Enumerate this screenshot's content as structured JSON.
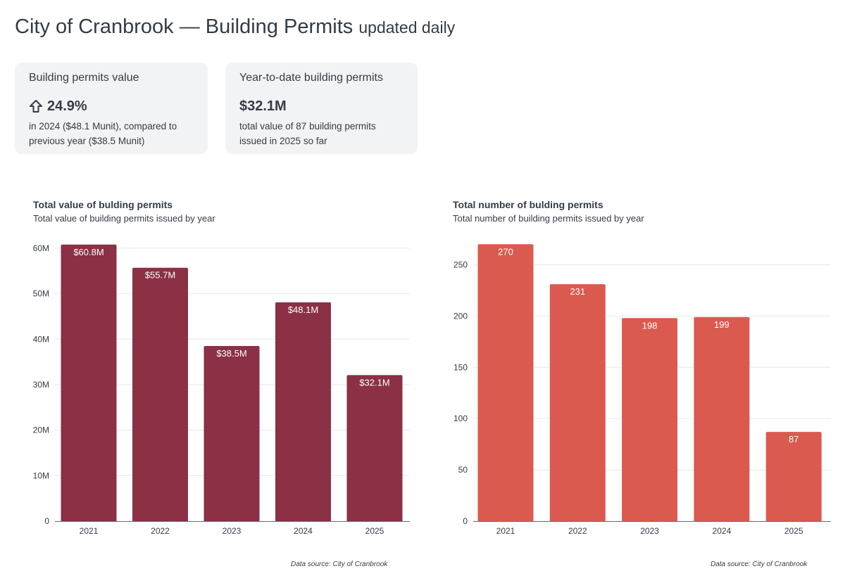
{
  "header": {
    "title": "City of Cranbrook — Building Permits",
    "subtitle": "updated daily"
  },
  "cards": [
    {
      "label": "Building permits value",
      "value": "24.9%",
      "icon": "arrow-up-icon",
      "description": "in 2024 ($48.1 Munit), compared to previous year ($38.5 Munit)"
    },
    {
      "label": "Year-to-date building permits",
      "value": "$32.1M",
      "description": "total value of 87 building permits issued in 2025 so far"
    }
  ],
  "colors": {
    "value_bars": "#8b3045",
    "count_bars": "#db5a50",
    "text": "#333c46",
    "grid": "#e6e6e6",
    "card_bg": "#f2f3f4"
  },
  "chart_data": [
    {
      "type": "bar",
      "title": "Total value of bulding permits",
      "subtitle": "Total value of building permits issued by year",
      "categories": [
        "2021",
        "2022",
        "2023",
        "2024",
        "2025"
      ],
      "values": [
        60.8,
        55.7,
        38.5,
        48.1,
        32.1
      ],
      "data_labels": [
        "$60.8M",
        "$55.7M",
        "$38.5M",
        "$48.1M",
        "$32.1M"
      ],
      "yticks": [
        0,
        10,
        20,
        30,
        40,
        50,
        60
      ],
      "ytick_labels": [
        "0",
        "10M",
        "20M",
        "30M",
        "40M",
        "50M",
        "60M"
      ],
      "ylim": [
        0,
        62
      ],
      "xlabel": "",
      "ylabel": "",
      "grid": true,
      "source": "Data source: City of Cranbrook"
    },
    {
      "type": "bar",
      "title": "Total number of bulding permits",
      "subtitle": "Total number of building permits issued by year",
      "categories": [
        "2021",
        "2022",
        "2023",
        "2024",
        "2025"
      ],
      "values": [
        270,
        231,
        198,
        199,
        87
      ],
      "data_labels": [
        "270",
        "231",
        "198",
        "199",
        "87"
      ],
      "yticks": [
        0,
        50,
        100,
        150,
        200,
        250
      ],
      "ytick_labels": [
        "0",
        "50",
        "100",
        "150",
        "200",
        "250"
      ],
      "ylim": [
        0,
        275
      ],
      "xlabel": "",
      "ylabel": "",
      "grid": true,
      "source": "Data source: City of Cranbrook"
    }
  ]
}
